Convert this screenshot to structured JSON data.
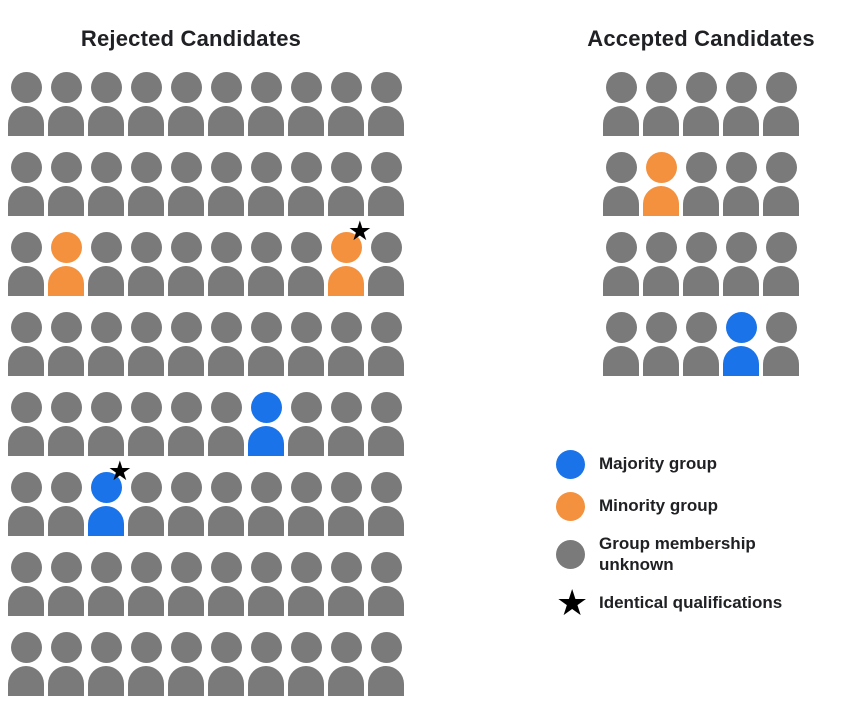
{
  "rejected_panel": {
    "title": "Rejected Candidates",
    "grid": [
      [
        "unknown",
        "unknown",
        "unknown",
        "unknown",
        "unknown",
        "unknown",
        "unknown",
        "unknown",
        "unknown",
        "unknown"
      ],
      [
        "unknown",
        "unknown",
        "unknown",
        "unknown",
        "unknown",
        "unknown",
        "unknown",
        "unknown",
        "unknown",
        "unknown"
      ],
      [
        "unknown",
        "minority",
        "unknown",
        "unknown",
        "unknown",
        "unknown",
        "unknown",
        "unknown",
        "minority-star",
        "unknown"
      ],
      [
        "unknown",
        "unknown",
        "unknown",
        "unknown",
        "unknown",
        "unknown",
        "unknown",
        "unknown",
        "unknown",
        "unknown"
      ],
      [
        "unknown",
        "unknown",
        "unknown",
        "unknown",
        "unknown",
        "unknown",
        "majority",
        "unknown",
        "unknown",
        "unknown"
      ],
      [
        "unknown",
        "unknown",
        "majority-star",
        "unknown",
        "unknown",
        "unknown",
        "unknown",
        "unknown",
        "unknown",
        "unknown"
      ],
      [
        "unknown",
        "unknown",
        "unknown",
        "unknown",
        "unknown",
        "unknown",
        "unknown",
        "unknown",
        "unknown",
        "unknown"
      ],
      [
        "unknown",
        "unknown",
        "unknown",
        "unknown",
        "unknown",
        "unknown",
        "unknown",
        "unknown",
        "unknown",
        "unknown"
      ]
    ]
  },
  "accepted_panel": {
    "title": "Accepted Candidates",
    "grid": [
      [
        "unknown",
        "unknown",
        "unknown",
        "unknown",
        "unknown"
      ],
      [
        "unknown",
        "minority",
        "unknown",
        "unknown",
        "unknown"
      ],
      [
        "unknown",
        "unknown",
        "unknown",
        "unknown",
        "unknown"
      ],
      [
        "unknown",
        "unknown",
        "unknown",
        "majority",
        "unknown"
      ]
    ]
  },
  "legend": {
    "items": [
      {
        "key": "majority-group",
        "swatch": "majority",
        "label": "Majority group"
      },
      {
        "key": "minority-group",
        "swatch": "minority",
        "label": "Minority group"
      },
      {
        "key": "group-membership-unknown",
        "swatch": "unknown",
        "label": "Group membership\nunknown"
      },
      {
        "key": "identical-qualifications",
        "swatch": "star",
        "label": "Identical qualifications"
      }
    ]
  },
  "icons": {
    "star_glyph": "★"
  },
  "colors": {
    "majority": "#1A73E8",
    "minority": "#F4913E",
    "unknown": "#7A7A7A",
    "star": "#000000",
    "text": "#202124",
    "background": "#FFFFFF"
  }
}
